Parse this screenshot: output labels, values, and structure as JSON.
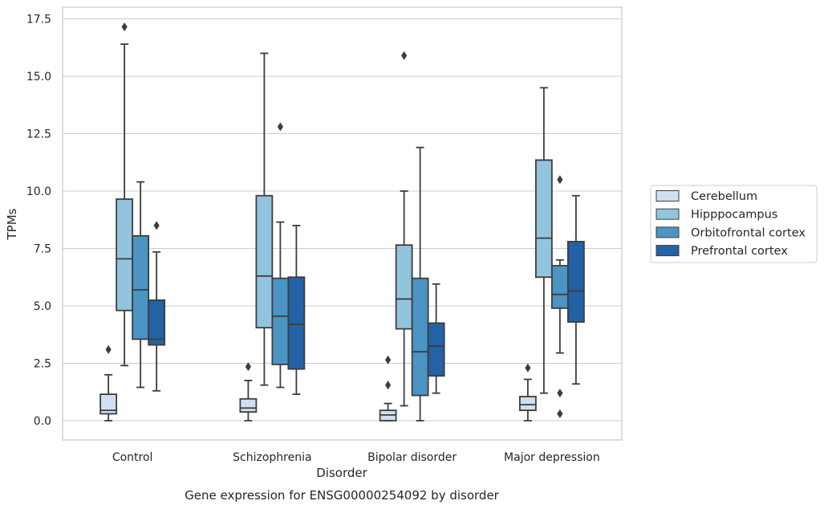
{
  "chart_data": {
    "type": "box",
    "caption": "Gene expression for ENSG00000254092 by disorder",
    "xlabel": "Disorder",
    "ylabel": "TPMs",
    "ylim": [
      -0.8,
      18.0
    ],
    "yticks": [
      0.0,
      2.5,
      5.0,
      7.5,
      10.0,
      12.5,
      15.0,
      17.5
    ],
    "ytick_labels": [
      "0.0",
      "2.5",
      "5.0",
      "7.5",
      "10.0",
      "12.5",
      "15.0",
      "17.5"
    ],
    "grid": "horizontal",
    "legend_position": "right",
    "categories": [
      "Control",
      "Schizophrenia",
      "Bipolar disorder",
      "Major depression"
    ],
    "series": [
      {
        "name": "Cerebellum",
        "color": "#d0e0f1",
        "boxes": [
          {
            "whislo": 0.0,
            "q1": 0.3,
            "med": 0.45,
            "q3": 1.15,
            "whishi": 2.0,
            "fliers": [
              3.1
            ]
          },
          {
            "whislo": 0.0,
            "q1": 0.38,
            "med": 0.55,
            "q3": 0.95,
            "whishi": 1.75,
            "fliers": [
              2.35
            ]
          },
          {
            "whislo": 0.0,
            "q1": 0.0,
            "med": 0.25,
            "q3": 0.45,
            "whishi": 0.75,
            "fliers": [
              1.55,
              2.65
            ]
          },
          {
            "whislo": 0.0,
            "q1": 0.45,
            "med": 0.7,
            "q3": 1.05,
            "whishi": 1.8,
            "fliers": [
              2.3
            ]
          }
        ]
      },
      {
        "name": "Hipppocampus",
        "color": "#93c4de",
        "boxes": [
          {
            "whislo": 2.4,
            "q1": 4.8,
            "med": 7.05,
            "q3": 9.65,
            "whishi": 16.4,
            "fliers": [
              17.15
            ]
          },
          {
            "whislo": 1.55,
            "q1": 4.05,
            "med": 6.3,
            "q3": 9.8,
            "whishi": 16.0,
            "fliers": []
          },
          {
            "whislo": 0.65,
            "q1": 4.0,
            "med": 5.3,
            "q3": 7.65,
            "whishi": 10.0,
            "fliers": [
              15.9
            ]
          },
          {
            "whislo": 1.2,
            "q1": 6.25,
            "med": 7.95,
            "q3": 11.35,
            "whishi": 14.5,
            "fliers": []
          }
        ]
      },
      {
        "name": "Orbitofrontal cortex",
        "color": "#4b94c4",
        "boxes": [
          {
            "whislo": 1.45,
            "q1": 3.55,
            "med": 5.7,
            "q3": 8.05,
            "whishi": 10.4,
            "fliers": []
          },
          {
            "whislo": 1.45,
            "q1": 2.45,
            "med": 4.55,
            "q3": 6.2,
            "whishi": 8.65,
            "fliers": [
              12.8
            ]
          },
          {
            "whislo": 0.0,
            "q1": 1.1,
            "med": 3.0,
            "q3": 6.2,
            "whishi": 11.9,
            "fliers": []
          },
          {
            "whislo": 2.95,
            "q1": 4.9,
            "med": 5.5,
            "q3": 6.75,
            "whishi": 7.0,
            "fliers": [
              10.5,
              1.2,
              0.3
            ]
          }
        ]
      },
      {
        "name": "Prefrontal cortex",
        "color": "#2362a5",
        "boxes": [
          {
            "whislo": 1.3,
            "q1": 3.3,
            "med": 3.55,
            "q3": 5.25,
            "whishi": 7.35,
            "fliers": [
              8.5
            ]
          },
          {
            "whislo": 1.15,
            "q1": 2.25,
            "med": 4.2,
            "q3": 6.25,
            "whishi": 8.5,
            "fliers": []
          },
          {
            "whislo": 1.2,
            "q1": 1.95,
            "med": 3.25,
            "q3": 4.25,
            "whishi": 5.95,
            "fliers": []
          },
          {
            "whislo": 1.6,
            "q1": 4.3,
            "med": 5.65,
            "q3": 7.8,
            "whishi": 9.8,
            "fliers": []
          }
        ]
      }
    ]
  }
}
